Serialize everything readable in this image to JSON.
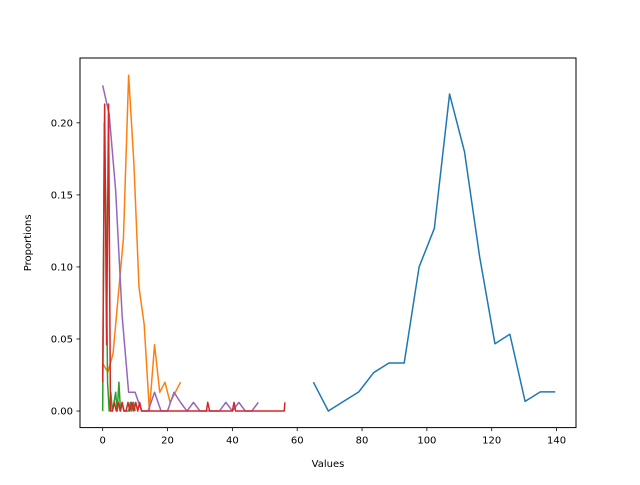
{
  "chart_data": {
    "type": "line",
    "title": "",
    "xlabel": "Values",
    "ylabel": "Proportions",
    "xlim": [
      -7,
      146
    ],
    "ylim": [
      -0.0115,
      0.245
    ],
    "xticks": [
      0,
      20,
      40,
      60,
      80,
      100,
      120,
      140
    ],
    "yticks": [
      0.0,
      0.05,
      0.1,
      0.15,
      0.2
    ],
    "xtick_labels": [
      "0",
      "20",
      "40",
      "60",
      "80",
      "100",
      "120",
      "140"
    ],
    "ytick_labels": [
      "0.00",
      "0.05",
      "0.10",
      "0.15",
      "0.20"
    ],
    "grid": false,
    "legend": null,
    "series": [
      {
        "color": "#1f77b4",
        "x": [
          65,
          69.6,
          74.3,
          79,
          83.6,
          88.3,
          93,
          97.6,
          102.3,
          107,
          111.6,
          116.3,
          121,
          125.6,
          130.3,
          135,
          139.6
        ],
        "y": [
          0.02,
          0.0,
          0.0067,
          0.0133,
          0.0267,
          0.0333,
          0.0333,
          0.1,
          0.1267,
          0.22,
          0.18,
          0.1067,
          0.0467,
          0.0533,
          0.0067,
          0.0133,
          0.0133
        ]
      },
      {
        "color": "#ff7f0e",
        "x": [
          0,
          1.6,
          3.2,
          4.8,
          6.4,
          8,
          9.6,
          11.2,
          12.8,
          14.4,
          16,
          17.6,
          19.2,
          20.8,
          22.4,
          24
        ],
        "y": [
          0.033,
          0.027,
          0.04,
          0.08,
          0.12,
          0.233,
          0.173,
          0.086,
          0.06,
          0.0,
          0.046,
          0.013,
          0.02,
          0.006,
          0.013,
          0.02
        ]
      },
      {
        "color": "#2ca02c",
        "x": [
          0,
          0.5,
          1,
          1.5,
          2,
          2.5,
          3,
          3.5,
          4,
          4.5,
          5,
          5.5,
          6,
          6.5,
          7,
          7.5,
          8,
          8.5,
          9,
          9.5,
          10
        ],
        "y": [
          0.0,
          0.2,
          0.14,
          0.02,
          0.0,
          0.013,
          0.0,
          0.006,
          0.013,
          0.0,
          0.02,
          0.0,
          0.006,
          0.0,
          0.0,
          0.0,
          0.0,
          0.006,
          0.0,
          0.006,
          0.0
        ]
      },
      {
        "color": "#9467bd",
        "x": [
          0,
          2,
          4,
          6,
          8,
          10,
          12,
          14,
          16,
          18,
          20,
          22,
          24,
          26,
          28,
          30,
          32,
          34,
          36,
          38,
          40,
          42,
          44,
          46,
          48
        ],
        "y": [
          0.226,
          0.206,
          0.153,
          0.066,
          0.013,
          0.013,
          0.0,
          0.0,
          0.013,
          0.0,
          0.0,
          0.013,
          0.006,
          0.0,
          0.006,
          0.0,
          0.0,
          0.0,
          0.0,
          0.006,
          0.0,
          0.006,
          0.0,
          0.0,
          0.006
        ]
      },
      {
        "color": "#d62728",
        "x": [
          0,
          0.6,
          1.2,
          1.8,
          2.4,
          3,
          3.6,
          4.2,
          4.8,
          5.4,
          6,
          6.6,
          7.2,
          7.8,
          8.4,
          9,
          9.6,
          10.2,
          10.8,
          11.4,
          12,
          14,
          16,
          18,
          20,
          24,
          28,
          32,
          32.4,
          33,
          36,
          40,
          40.5,
          41,
          44,
          48,
          52,
          56,
          56.2
        ],
        "y": [
          0.02,
          0.213,
          0.046,
          0.213,
          0.0,
          0.0,
          0.006,
          0.0,
          0.006,
          0.0,
          0.006,
          0.0,
          0.0,
          0.006,
          0.0,
          0.006,
          0.0,
          0.006,
          0.0,
          0.006,
          0.0,
          0.0,
          0.0,
          0.0,
          0.0,
          0.0,
          0.0,
          0.0,
          0.006,
          0.0,
          0.0,
          0.0,
          0.006,
          0.0,
          0.0,
          0.0,
          0.0,
          0.0,
          0.006
        ]
      }
    ]
  }
}
